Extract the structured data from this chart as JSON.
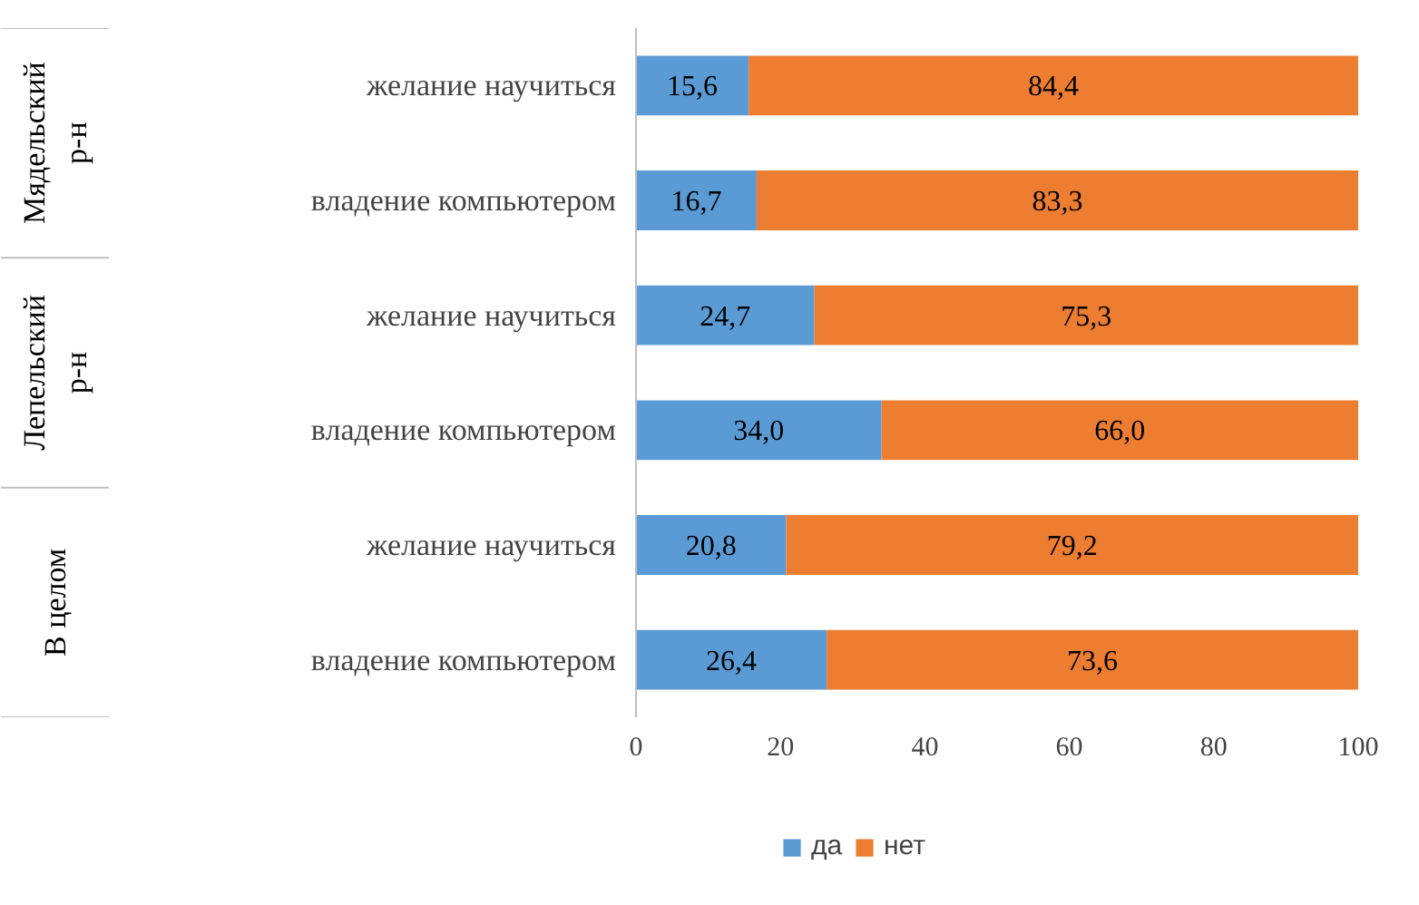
{
  "chart_data": {
    "type": "bar",
    "orientation": "horizontal",
    "stacked": true,
    "categories": [
      "желание научиться",
      "владение компьютером",
      "желание научиться",
      "владение компьютером",
      "желание научиться",
      "владение компьютером"
    ],
    "series": [
      {
        "name": "да",
        "color": "#5b9bd5",
        "values": [
          15.6,
          16.7,
          24.7,
          34.0,
          20.8,
          26.4
        ],
        "value_labels": [
          "15,6",
          "16,7",
          "24,7",
          "34,0",
          "20,8",
          "26,4"
        ]
      },
      {
        "name": "нет",
        "color": "#ed7d31",
        "values": [
          84.4,
          83.3,
          75.3,
          66.0,
          79.2,
          73.6
        ],
        "value_labels": [
          "84,4",
          "83,3",
          "75,3",
          "66,0",
          "79,2",
          "73,6"
        ]
      }
    ],
    "annotations": [
      "Мядельский р-н",
      "Лепельский р-н",
      "В целом"
    ],
    "xlim": [
      0,
      100
    ],
    "xticks": [
      0,
      20,
      40,
      60,
      80,
      100
    ],
    "legend": "bottom",
    "grid": false
  }
}
